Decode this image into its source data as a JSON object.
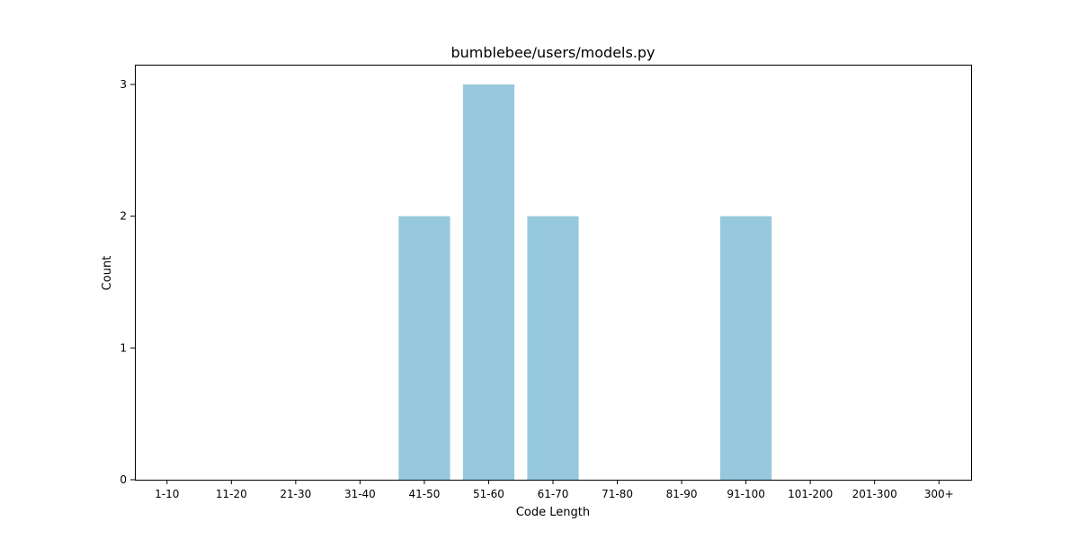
{
  "chart_data": {
    "type": "bar",
    "title": "bumblebee/users/models.py",
    "xlabel": "Code Length",
    "ylabel": "Count",
    "categories": [
      "1-10",
      "11-20",
      "21-30",
      "31-40",
      "41-50",
      "51-60",
      "61-70",
      "71-80",
      "81-90",
      "91-100",
      "101-200",
      "201-300",
      "300+"
    ],
    "values": [
      0,
      0,
      0,
      0,
      2,
      3,
      2,
      0,
      0,
      2,
      0,
      0,
      0
    ],
    "ylim": [
      0,
      3.15
    ],
    "yticks": [
      0,
      1,
      2,
      3
    ],
    "bar_color": "#96c9dd",
    "grid": false,
    "legend": "none"
  }
}
